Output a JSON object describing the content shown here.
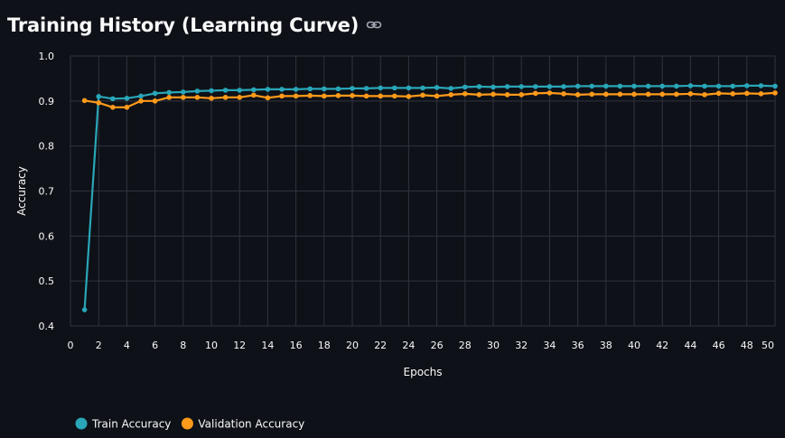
{
  "header": {
    "title": "Training History (Learning Curve)",
    "link_icon": "link-icon"
  },
  "chart_data": {
    "type": "line",
    "title": "",
    "xlabel": "Epochs",
    "ylabel": "Accuracy",
    "xlim": [
      0,
      50
    ],
    "ylim": [
      0.4,
      1.0
    ],
    "xticks": [
      0,
      2,
      4,
      6,
      8,
      10,
      12,
      14,
      16,
      18,
      20,
      22,
      24,
      26,
      28,
      30,
      32,
      34,
      36,
      38,
      40,
      42,
      44,
      46,
      48,
      50
    ],
    "yticks": [
      0.4,
      0.5,
      0.6,
      0.7,
      0.8,
      0.9,
      1.0
    ],
    "ytick_labels": [
      "0.4",
      "0.5",
      "0.6",
      "0.7",
      "0.8",
      "0.9",
      "1.0"
    ],
    "grid": true,
    "legend_position": "bottom-left",
    "x": [
      1,
      2,
      3,
      4,
      5,
      6,
      7,
      8,
      9,
      10,
      11,
      12,
      13,
      14,
      15,
      16,
      17,
      18,
      19,
      20,
      21,
      22,
      23,
      24,
      25,
      26,
      27,
      28,
      29,
      30,
      31,
      32,
      33,
      34,
      35,
      36,
      37,
      38,
      39,
      40,
      41,
      42,
      43,
      44,
      45,
      46,
      47,
      48,
      49,
      50
    ],
    "series": [
      {
        "name": "Train Accuracy",
        "color": "#29a6b8",
        "values": [
          0.436,
          0.91,
          0.905,
          0.906,
          0.911,
          0.917,
          0.919,
          0.92,
          0.922,
          0.923,
          0.924,
          0.924,
          0.925,
          0.926,
          0.926,
          0.926,
          0.927,
          0.927,
          0.927,
          0.928,
          0.928,
          0.929,
          0.929,
          0.929,
          0.929,
          0.93,
          0.928,
          0.931,
          0.932,
          0.931,
          0.932,
          0.932,
          0.932,
          0.932,
          0.932,
          0.933,
          0.933,
          0.933,
          0.933,
          0.933,
          0.933,
          0.933,
          0.933,
          0.934,
          0.933,
          0.933,
          0.933,
          0.934,
          0.934,
          0.933
        ]
      },
      {
        "name": "Validation Accuracy",
        "color": "#ff9a1a",
        "values": [
          0.901,
          0.896,
          0.886,
          0.886,
          0.9,
          0.9,
          0.908,
          0.908,
          0.908,
          0.906,
          0.908,
          0.908,
          0.913,
          0.907,
          0.911,
          0.911,
          0.912,
          0.911,
          0.912,
          0.912,
          0.911,
          0.911,
          0.911,
          0.91,
          0.913,
          0.911,
          0.914,
          0.916,
          0.914,
          0.915,
          0.914,
          0.914,
          0.917,
          0.918,
          0.916,
          0.914,
          0.915,
          0.915,
          0.915,
          0.915,
          0.915,
          0.915,
          0.915,
          0.916,
          0.914,
          0.917,
          0.916,
          0.917,
          0.916,
          0.918
        ]
      }
    ]
  }
}
